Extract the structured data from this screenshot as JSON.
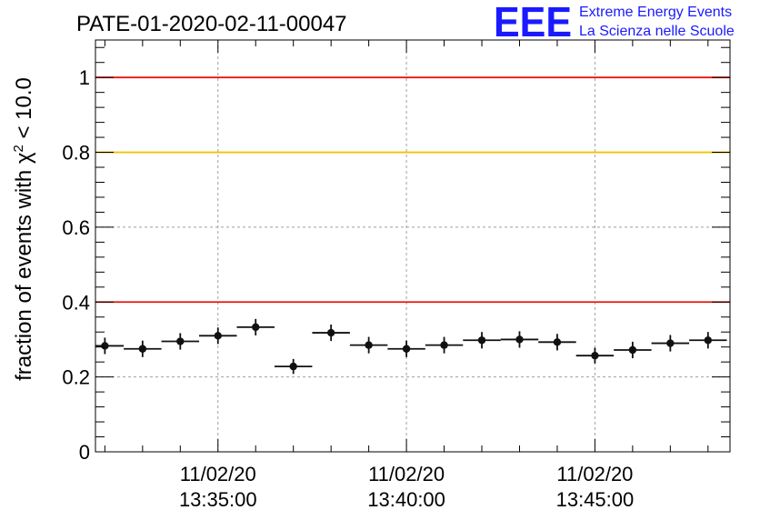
{
  "title": "PATE-01-2020-02-11-00047",
  "logo": {
    "mark": "EEE",
    "line1": "Extreme Energy Events",
    "line2": "La Scienza nelle Scuole",
    "color": "#1a1aff"
  },
  "chart_data": {
    "type": "scatter",
    "title": "PATE-01-2020-02-11-00047",
    "ylabel": "fraction of events with χ² < 10.0",
    "ylabel_parts": {
      "pre": "fraction of events with ",
      "sym": "χ",
      "sup": "2",
      "post": " < 10.0"
    },
    "xlabel": "",
    "ylim": [
      0,
      1.1
    ],
    "xlim": [
      "13:31:45",
      "13:48:35"
    ],
    "y_ticks": [
      "0",
      "0.2",
      "0.4",
      "0.6",
      "0.8",
      "1"
    ],
    "x_ticks": [
      {
        "date": "11/02/20",
        "time": "13:35:00"
      },
      {
        "date": "11/02/20",
        "time": "13:40:00"
      },
      {
        "date": "11/02/20",
        "time": "13:45:00"
      }
    ],
    "grid": true,
    "bin_width_minutes": 1,
    "reference_lines": [
      {
        "y": 1.0,
        "color": "#e8140e"
      },
      {
        "y": 0.8,
        "color": "#f5c000"
      },
      {
        "y": 0.4,
        "color": "#e8140e"
      }
    ],
    "points": [
      {
        "x": "13:32:00",
        "y": 0.283,
        "yerr": 0.022
      },
      {
        "x": "13:33:00",
        "y": 0.275,
        "yerr": 0.022
      },
      {
        "x": "13:34:00",
        "y": 0.295,
        "yerr": 0.022
      },
      {
        "x": "13:35:00",
        "y": 0.31,
        "yerr": 0.022
      },
      {
        "x": "13:36:00",
        "y": 0.333,
        "yerr": 0.022
      },
      {
        "x": "13:37:00",
        "y": 0.228,
        "yerr": 0.02
      },
      {
        "x": "13:38:00",
        "y": 0.318,
        "yerr": 0.022
      },
      {
        "x": "13:39:00",
        "y": 0.285,
        "yerr": 0.022
      },
      {
        "x": "13:40:00",
        "y": 0.275,
        "yerr": 0.022
      },
      {
        "x": "13:41:00",
        "y": 0.285,
        "yerr": 0.022
      },
      {
        "x": "13:42:00",
        "y": 0.298,
        "yerr": 0.022
      },
      {
        "x": "13:43:00",
        "y": 0.3,
        "yerr": 0.022
      },
      {
        "x": "13:44:00",
        "y": 0.293,
        "yerr": 0.022
      },
      {
        "x": "13:45:00",
        "y": 0.257,
        "yerr": 0.021
      },
      {
        "x": "13:46:00",
        "y": 0.272,
        "yerr": 0.022
      },
      {
        "x": "13:47:00",
        "y": 0.29,
        "yerr": 0.022
      },
      {
        "x": "13:48:00",
        "y": 0.298,
        "yerr": 0.022
      }
    ],
    "colors": {
      "marker": "#111111",
      "grid": "#a0a0a0",
      "frame": "#000000"
    }
  }
}
